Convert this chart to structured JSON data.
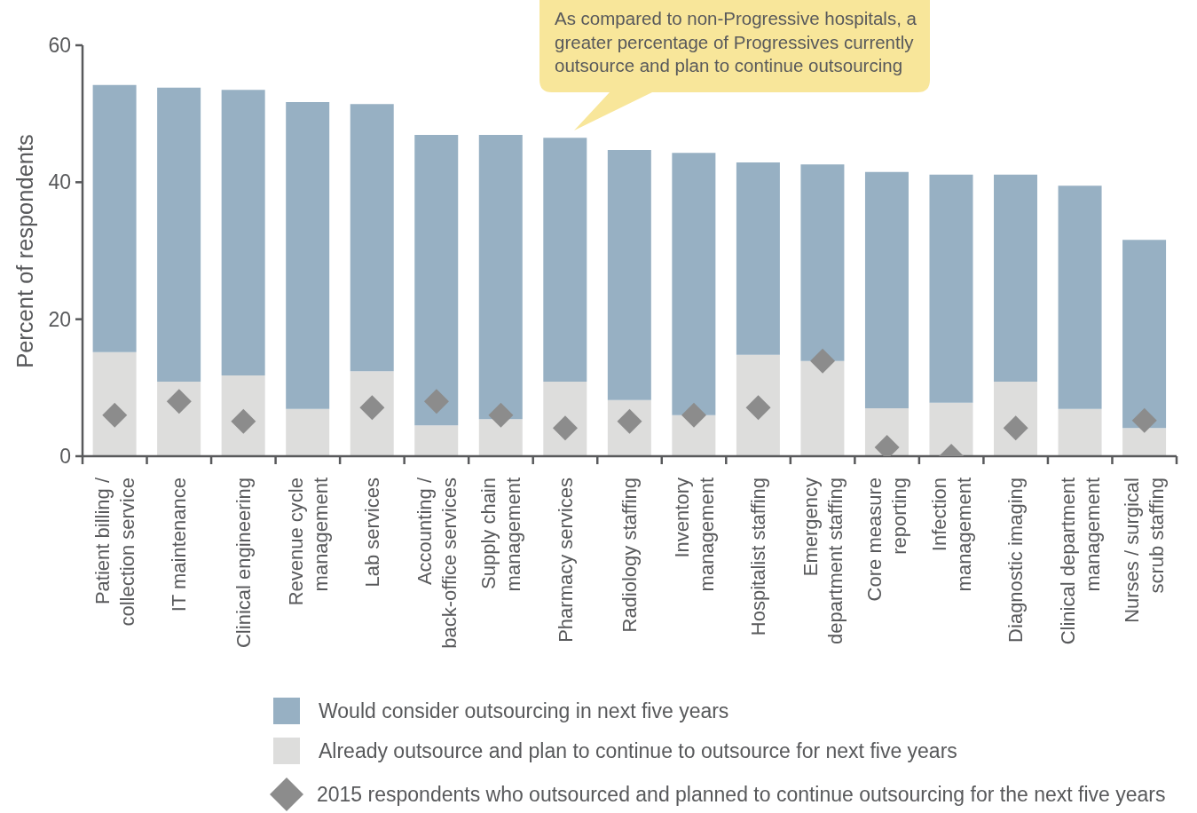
{
  "chart_data": {
    "type": "bar",
    "stacked": true,
    "ylabel": "Percent of respondents",
    "categories": [
      "Patient billing /\ncollection service",
      "IT maintenance",
      "Clinical engineering",
      "Revenue cycle\nmanagement",
      "Lab services",
      "Accounting /\nback-office services",
      "Supply chain\nmanagement",
      "Pharmacy services",
      "Radiology staffing",
      "Inventory\nmanagement",
      "Hospitalist staffing",
      "Emergency\ndepartment staffing",
      "Core measure\nreporting",
      "Infection\nmanagement",
      "Diagnostic imaging",
      "Clinical department\nmanagement",
      "Nurses / surgical\nscrub staffing"
    ],
    "series": [
      {
        "name": "Already outsource and plan to continue to outsource for next five years",
        "color": "#dddddc",
        "values": [
          15.2,
          10.9,
          11.8,
          6.9,
          12.4,
          4.5,
          5.4,
          10.9,
          8.2,
          6.0,
          14.8,
          13.9,
          7.0,
          7.8,
          10.9,
          6.9,
          4.1
        ]
      },
      {
        "name": "Would consider outsourcing in next five years",
        "color": "#97b0c3",
        "values": [
          39.0,
          42.9,
          41.7,
          44.8,
          39.0,
          42.4,
          41.5,
          35.6,
          36.5,
          38.3,
          28.1,
          28.7,
          34.5,
          33.3,
          30.2,
          32.6,
          27.5
        ]
      },
      {
        "name": "2015 respondents who outsourced and planned to continue outsourcing for the next five years",
        "type": "scatter",
        "marker": "diamond",
        "color": "#8c8c8c",
        "x": [
          "Patient billing /\ncollection service",
          "IT maintenance",
          "Clinical engineering",
          "Revenue cycle\nmanagement",
          "Lab services",
          "Accounting /\nback-office services",
          "Supply chain\nmanagement",
          "Pharmacy services",
          "Radiology staffing",
          "Inventory\nmanagement",
          "Hospitalist staffing",
          "Emergency\ndepartment staffing",
          "Core measure\nreporting",
          "Infection\nmanagement",
          "Diagnostic imaging",
          "Clinical department\nmanagement",
          "Nurses / surgical\nscrub staffing"
        ],
        "values": [
          6.0,
          8.0,
          5.1,
          null,
          7.1,
          8.0,
          6.0,
          4.1,
          5.1,
          6.0,
          7.1,
          13.9,
          1.3,
          0,
          4.1,
          null,
          5.2
        ]
      }
    ],
    "ylim": [
      0,
      60
    ],
    "yticks": [
      0,
      20,
      40,
      60
    ],
    "legend": "bottom",
    "annotations": [
      "As compared to non-Progressive hospitals, a greater percentage of Progressives currently outsource and plan to continue outsourcing"
    ]
  }
}
